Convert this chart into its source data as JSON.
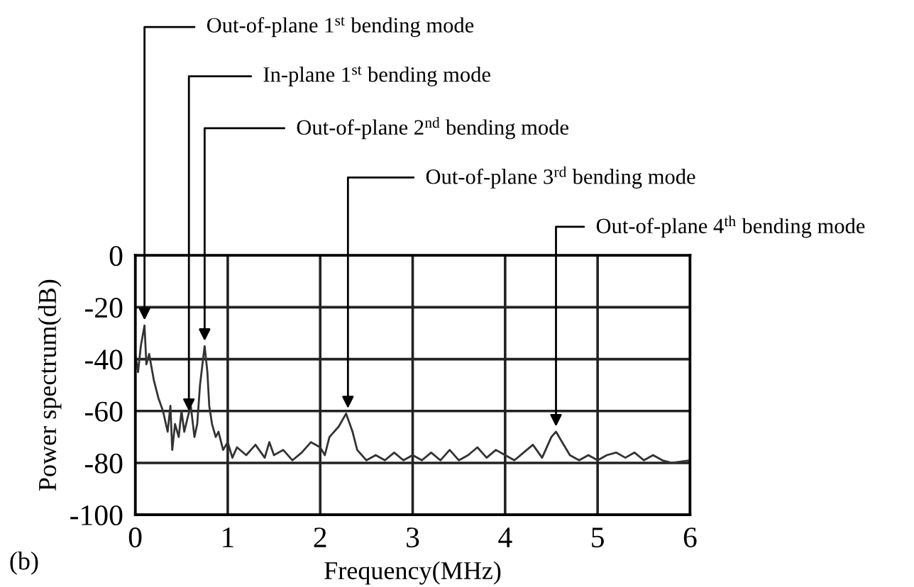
{
  "chart_data": {
    "type": "line",
    "xlabel": "Frequency(MHz)",
    "ylabel": "Power spectrum(dB)",
    "xlim": [
      0,
      6
    ],
    "ylim": [
      -100,
      0
    ],
    "xticks": [
      0,
      1,
      2,
      3,
      4,
      5,
      6
    ],
    "yticks": [
      0,
      -20,
      -40,
      -60,
      -80,
      -100
    ],
    "grid": true,
    "series": [
      {
        "color": "#333333",
        "x": [
          0,
          0.03,
          0.06,
          0.1,
          0.12,
          0.15,
          0.2,
          0.25,
          0.3,
          0.35,
          0.38,
          0.4,
          0.43,
          0.47,
          0.5,
          0.53,
          0.57,
          0.6,
          0.64,
          0.67,
          0.7,
          0.75,
          0.78,
          0.8,
          0.83,
          0.87,
          0.9,
          0.95,
          1.0,
          1.05,
          1.1,
          1.2,
          1.3,
          1.4,
          1.45,
          1.5,
          1.6,
          1.7,
          1.8,
          1.9,
          2.0,
          2.05,
          2.1,
          2.2,
          2.28,
          2.35,
          2.4,
          2.5,
          2.6,
          2.7,
          2.8,
          2.9,
          3.0,
          3.1,
          3.2,
          3.3,
          3.4,
          3.5,
          3.6,
          3.7,
          3.8,
          3.9,
          4.0,
          4.1,
          4.2,
          4.3,
          4.4,
          4.5,
          4.55,
          4.6,
          4.65,
          4.7,
          4.8,
          4.9,
          5.0,
          5.1,
          5.2,
          5.3,
          5.4,
          5.5,
          5.6,
          5.7,
          5.8,
          6.0
        ],
        "values": [
          -38,
          -45,
          -35,
          -27,
          -42,
          -38,
          -48,
          -55,
          -60,
          -68,
          -58,
          -75,
          -65,
          -70,
          -60,
          -68,
          -62,
          -58,
          -70,
          -65,
          -50,
          -35,
          -45,
          -58,
          -65,
          -70,
          -68,
          -75,
          -72,
          -78,
          -74,
          -77,
          -73,
          -78,
          -72,
          -77,
          -75,
          -79,
          -76,
          -72,
          -74,
          -77,
          -70,
          -66,
          -61,
          -68,
          -75,
          -79,
          -77,
          -79,
          -76,
          -79,
          -77,
          -79,
          -76,
          -79,
          -75,
          -79,
          -77,
          -74,
          -78,
          -75,
          -77,
          -79,
          -76,
          -73,
          -78,
          -70,
          -68,
          -71,
          -74,
          -77,
          -79,
          -77,
          -79,
          -77,
          -76,
          -78,
          -76,
          -79,
          -77,
          -79,
          -80,
          -79
        ]
      }
    ],
    "annotations": [
      {
        "text": "Out-of-plane 1$^{st}$ bending mode",
        "x": 0.1,
        "y": -25
      },
      {
        "text": "In-plane 1$^{st}$ bending mode",
        "x": 0.58,
        "y": -60
      },
      {
        "text": "Out-of-plane 2$^{nd}$ bending mode",
        "x": 0.75,
        "y": -33
      },
      {
        "text": "Out-of-plane 3$^{rd}$ bending mode",
        "x": 2.3,
        "y": -59
      },
      {
        "text": "Out-of-plane 4$^{th}$ bending mode",
        "x": 4.55,
        "y": -66
      },
      "(b)"
    ]
  }
}
